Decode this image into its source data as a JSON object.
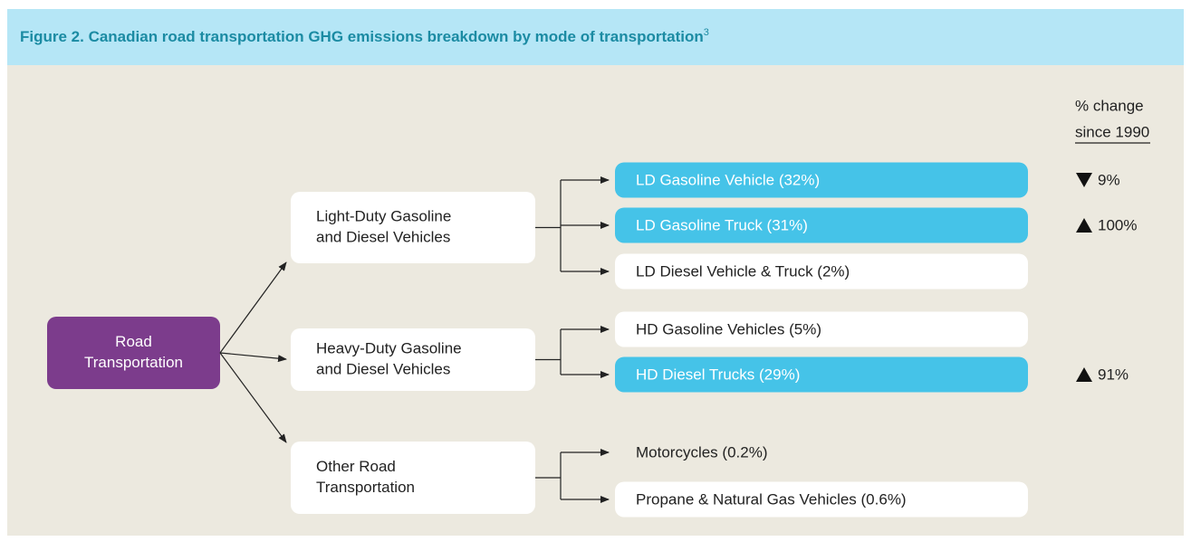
{
  "title": "Figure 2.  Canadian road transportation GHG emissions breakdown by mode of transportation",
  "title_note": "3",
  "column_header": [
    "% change",
    "since 1990"
  ],
  "root": {
    "label": [
      "Road",
      "Transportation"
    ]
  },
  "groups": [
    {
      "label": [
        "Light-Duty Gasoline",
        "and Diesel Vehicles"
      ],
      "children": [
        {
          "label": "LD Gasoline Vehicle (32%)",
          "style": "blue",
          "change": {
            "direction": "down",
            "label": "9%"
          }
        },
        {
          "label": "LD Gasoline Truck (31%)",
          "style": "blue",
          "change": {
            "direction": "up",
            "label": "100%"
          }
        },
        {
          "label": "LD Diesel Vehicle & Truck (2%)",
          "style": "white"
        }
      ]
    },
    {
      "label": [
        "Heavy-Duty Gasoline",
        "and Diesel Vehicles"
      ],
      "children": [
        {
          "label": "HD Gasoline Vehicles (5%)",
          "style": "white"
        },
        {
          "label": "HD Diesel Trucks (29%)",
          "style": "blue",
          "change": {
            "direction": "up",
            "label": "91%"
          }
        }
      ]
    },
    {
      "label": [
        "Other Road",
        "Transportation"
      ],
      "children": [
        {
          "label": "Motorcycles (0.2%)",
          "style": "none"
        },
        {
          "label": "Propane & Natural Gas Vehicles (0.6%)",
          "style": "white"
        }
      ]
    }
  ]
}
